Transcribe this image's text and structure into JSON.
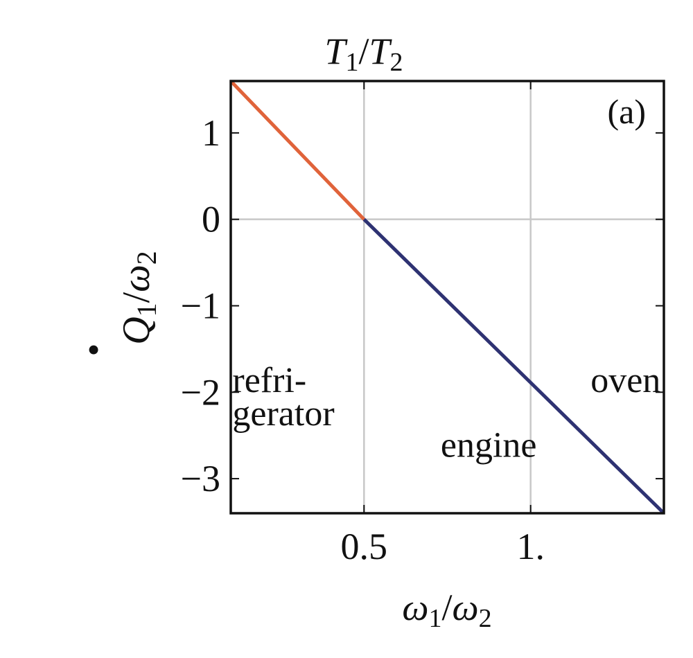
{
  "chart_data": {
    "type": "line",
    "panel_label": "(a)",
    "top_label": {
      "main": "T",
      "sub1": "1",
      "slash": "/",
      "main2": "T",
      "sub2": "2"
    },
    "xlabel": {
      "main": "ω",
      "sub1": "1",
      "slash": "/",
      "main2": "ω",
      "sub2": "2"
    },
    "ylabel": {
      "dot": "•",
      "main": "Q",
      "sub1": "1",
      "slash": "/",
      "main2": "ω",
      "sub2": "2"
    },
    "xlim": [
      0.1,
      1.4
    ],
    "ylim": [
      -3.4,
      1.6
    ],
    "x_ticks": [
      {
        "value": 0.5,
        "label": "0.5"
      },
      {
        "value": 1.0,
        "label": "1."
      }
    ],
    "y_ticks": [
      {
        "value": 1,
        "label": "1"
      },
      {
        "value": 0,
        "label": "0"
      },
      {
        "value": -1,
        "label": "−1"
      },
      {
        "value": -2,
        "label": "−2"
      },
      {
        "value": -3,
        "label": "−3"
      }
    ],
    "grid_x": [
      0.5,
      1.0
    ],
    "grid_y": [
      0
    ],
    "series": [
      {
        "color": "#e0633a",
        "x": [
          0.1,
          0.5
        ],
        "y": [
          1.6,
          0.0
        ]
      },
      {
        "color": "#2e3272",
        "x": [
          0.5,
          1.4
        ],
        "y": [
          0.0,
          -3.4
        ]
      }
    ],
    "regions": [
      {
        "lines": [
          "refri-",
          "gerator"
        ],
        "x": 0.105,
        "y": -1.9
      },
      {
        "lines": [
          "engine"
        ],
        "x": 0.73,
        "y": -2.65
      },
      {
        "lines": [
          "oven"
        ],
        "x": 1.18,
        "y": -1.9
      }
    ]
  }
}
